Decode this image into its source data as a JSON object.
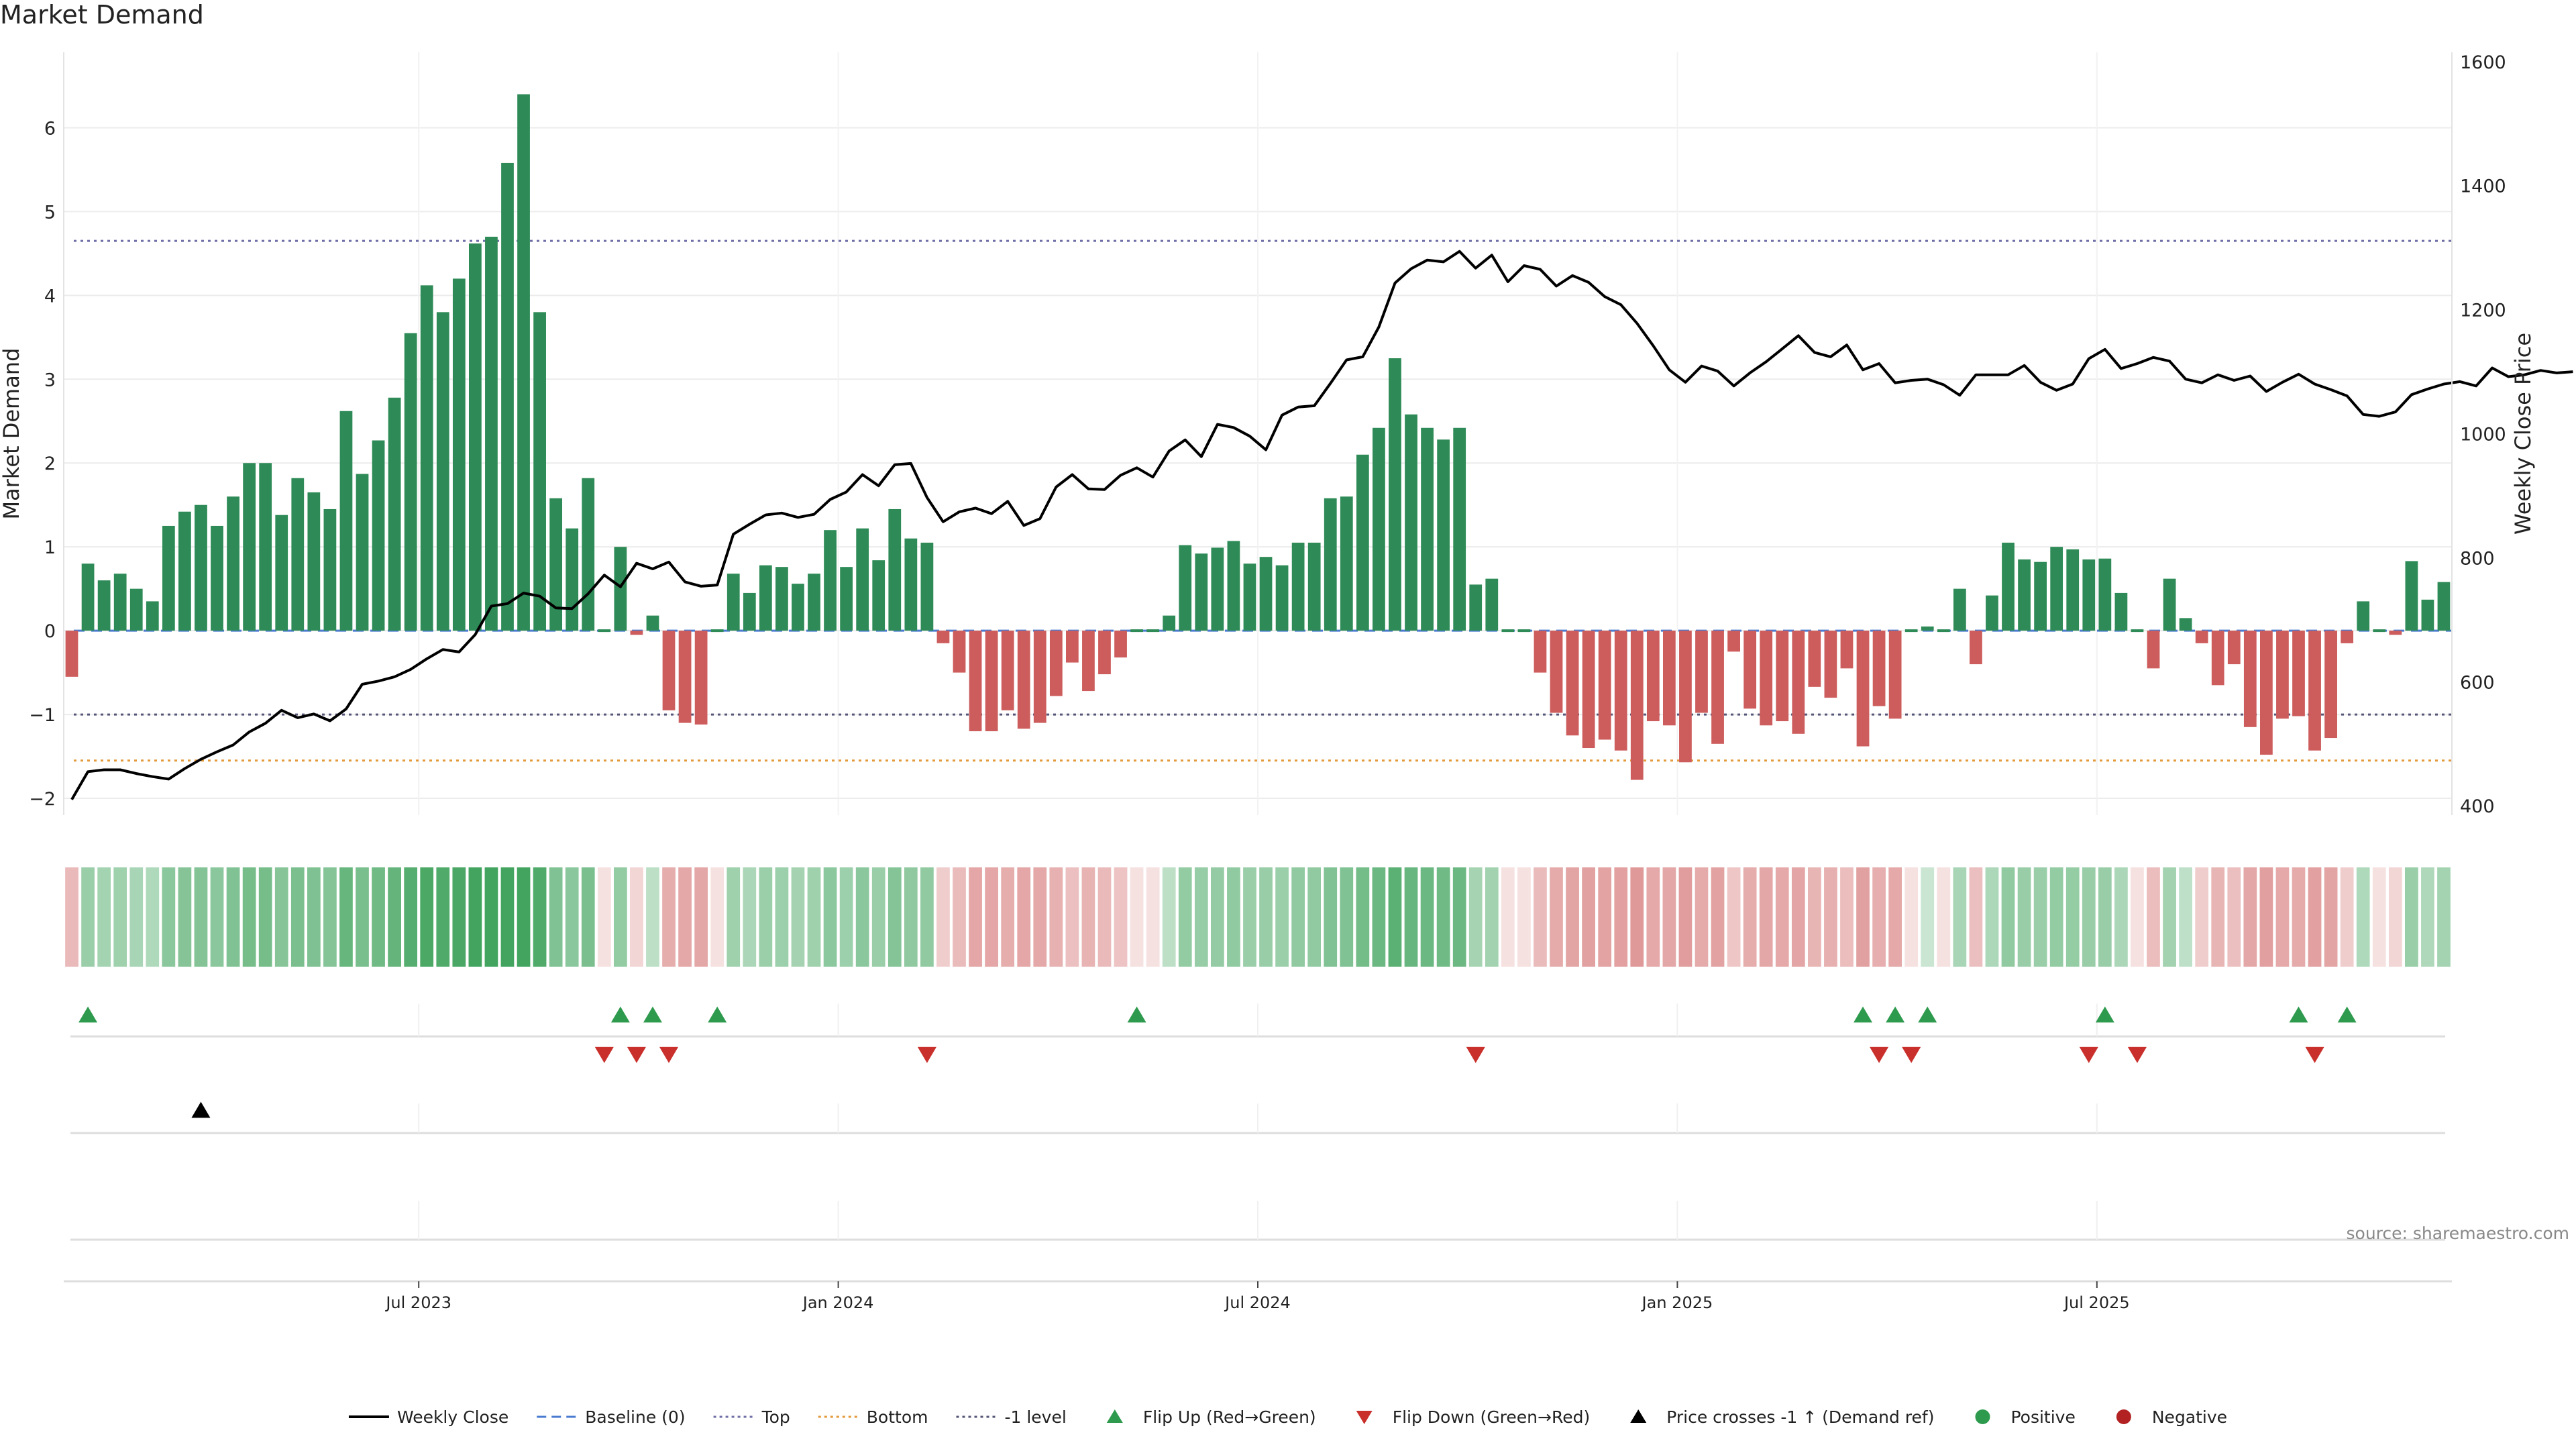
{
  "chart_data": {
    "type": "bar",
    "title": "Market Demand",
    "ylabel": "Market Demand",
    "y2label": "Weekly Close Price",
    "ylim": [
      -2.2,
      6.9
    ],
    "y2lim": [
      385,
      1615
    ],
    "yticks": [
      -2,
      -1,
      0,
      1,
      2,
      3,
      4,
      5,
      6
    ],
    "y2ticks": [
      400,
      600,
      800,
      1000,
      1200,
      1400,
      1600
    ],
    "y_tick_labels": [
      "−2",
      "−1",
      "0",
      "1",
      "2",
      "3",
      "4",
      "5",
      "6"
    ],
    "x_tick_labels": [
      "Jul 2023",
      "Jan 2024",
      "Jul 2024",
      "Jan 2025",
      "Jul 2025"
    ],
    "x_tick_weeks": [
      22,
      48,
      74,
      100,
      126
    ],
    "grid": true,
    "reference_lines": {
      "top": 4.65,
      "bottom": -1.55,
      "minus_one": -1.0,
      "baseline": 0
    },
    "demand": [
      -0.55,
      0.8,
      0.6,
      0.68,
      0.5,
      0.35,
      1.25,
      1.42,
      1.5,
      1.25,
      1.6,
      2.0,
      2.0,
      1.38,
      1.82,
      1.65,
      1.45,
      2.62,
      1.87,
      2.27,
      2.78,
      3.55,
      4.12,
      3.8,
      4.2,
      4.62,
      4.7,
      5.58,
      6.4,
      3.8,
      1.58,
      1.22,
      1.82,
      0.0,
      1.0,
      -0.05,
      0.18,
      -0.95,
      -1.1,
      -1.12,
      0.0,
      0.68,
      0.45,
      0.78,
      0.76,
      0.56,
      0.68,
      1.2,
      0.76,
      1.22,
      0.84,
      1.45,
      1.1,
      1.05,
      -0.15,
      -0.5,
      -1.2,
      -1.2,
      -0.95,
      -1.17,
      -1.1,
      -0.78,
      -0.38,
      -0.72,
      -0.52,
      -0.32,
      0.0,
      0.0,
      0.18,
      1.02,
      0.92,
      0.99,
      1.07,
      0.8,
      0.88,
      0.78,
      1.05,
      1.05,
      1.58,
      1.6,
      2.1,
      2.42,
      3.25,
      2.58,
      2.42,
      2.28,
      2.42,
      0.55,
      0.62,
      0.0,
      0.0,
      -0.5,
      -0.98,
      -1.25,
      -1.4,
      -1.3,
      -1.43,
      -1.78,
      -1.08,
      -1.13,
      -1.57,
      -0.98,
      -1.35,
      -0.25,
      -0.93,
      -1.13,
      -1.08,
      -1.23,
      -0.67,
      -0.8,
      -0.45,
      -1.38,
      -0.9,
      -1.05,
      0.0,
      0.05,
      0.0,
      0.5,
      -0.4,
      0.42,
      1.05,
      0.85,
      0.82,
      1.0,
      0.97,
      0.85,
      0.86,
      0.45,
      0.0,
      -0.45,
      0.62,
      0.15,
      -0.15,
      -0.65,
      -0.4,
      -1.15,
      -1.48,
      -1.05,
      -1.02,
      -1.43,
      -1.28,
      -0.15,
      0.35,
      0.0,
      -0.05,
      0.83,
      0.37,
      0.58
    ],
    "weekly_close": [
      410,
      455,
      458,
      458,
      452,
      447,
      443,
      460,
      475,
      487,
      498,
      519,
      533,
      554,
      542,
      548,
      537,
      556,
      596,
      601,
      608,
      620,
      637,
      652,
      648,
      676,
      722,
      726,
      743,
      738,
      719,
      718,
      742,
      772,
      753,
      791,
      782,
      793,
      761,
      754,
      756,
      838,
      854,
      869,
      872,
      865,
      870,
      894,
      906,
      934,
      916,
      950,
      952,
      897,
      858,
      874,
      880,
      871,
      891,
      852,
      863,
      914,
      934,
      911,
      910,
      933,
      945,
      930,
      972,
      990,
      963,
      1015,
      1010,
      996,
      974,
      1030,
      1043,
      1045,
      1081,
      1119,
      1124,
      1172,
      1243,
      1266,
      1280,
      1277,
      1294,
      1267,
      1288,
      1245,
      1271,
      1265,
      1238,
      1255,
      1244,
      1221,
      1208,
      1178,
      1142,
      1103,
      1083,
      1109,
      1101,
      1077,
      1098,
      1116,
      1137,
      1158,
      1131,
      1124,
      1143,
      1103,
      1113,
      1082,
      1086,
      1088,
      1079,
      1062,
      1095,
      1095,
      1095,
      1110,
      1083,
      1070,
      1080,
      1121,
      1136,
      1105,
      1113,
      1123,
      1117,
      1088,
      1082,
      1095,
      1086,
      1093,
      1068,
      1083,
      1096,
      1080,
      1071,
      1061,
      1031,
      1028,
      1035,
      1063,
      1072,
      1080,
      1084,
      1077,
      1106,
      1092,
      1095,
      1102,
      1098,
      1100
    ],
    "flip_up_weeks": [
      1,
      34,
      36,
      40,
      66,
      111,
      113,
      115,
      126,
      138,
      141
    ],
    "flip_down_weeks": [
      33,
      35,
      37,
      53,
      87,
      112,
      114,
      125,
      128,
      139
    ],
    "price_cross_weeks": [
      8
    ]
  },
  "source_text": "source: sharemaestro.com",
  "legend": [
    {
      "label": "Weekly Close",
      "kind": "line",
      "color": "#000000"
    },
    {
      "label": "Baseline (0)",
      "kind": "dash",
      "color": "#4a7bd0"
    },
    {
      "label": "Top",
      "kind": "dot",
      "color": "#6f6fa8"
    },
    {
      "label": "Bottom",
      "kind": "dot",
      "color": "#e39a3b"
    },
    {
      "label": "-1 level",
      "kind": "dot",
      "color": "#555577"
    },
    {
      "label": "Flip Up (Red→Green)",
      "kind": "tri-up",
      "color": "#2e9a4d"
    },
    {
      "label": "Flip Down (Green→Red)",
      "kind": "tri-down",
      "color": "#c9302c"
    },
    {
      "label": "Price crosses -1 ↑ (Demand ref)",
      "kind": "tri-up",
      "color": "#000000"
    },
    {
      "label": "Positive",
      "kind": "circle",
      "color": "#2e9a4d"
    },
    {
      "label": "Negative",
      "kind": "circle",
      "color": "#b22222"
    }
  ],
  "colors": {
    "positive_bar": "#2e8b57",
    "negative_bar": "#cd5c5c",
    "price_line": "#000000",
    "flip_up": "#2e9a4d",
    "flip_down": "#c9302c"
  }
}
